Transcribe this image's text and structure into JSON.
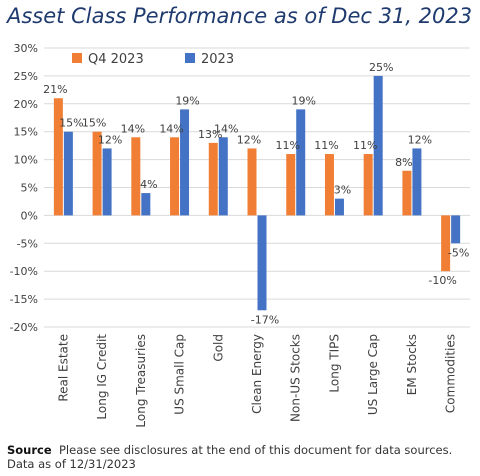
{
  "title": "Asset Class Performance as of Dec 31, 2023",
  "source": {
    "label": "Source",
    "text": "Please see disclosures at the end of this document for data sources.",
    "note": "Data as of 12/31/2023"
  },
  "colors": {
    "q4": "#f07f35",
    "year": "#4472c4",
    "grid": "#d9d9d9",
    "axis_text": "#404040"
  },
  "chart_data": {
    "type": "bar",
    "title": "Asset Class Performance as of Dec 31, 2023",
    "categories": [
      "Real Estate",
      "Long IG Credit",
      "Long Treasuries",
      "US Small Cap",
      "Gold",
      "Clean Energy",
      "Non-US Stocks",
      "Long TIPS",
      "US Large Cap",
      "EM Stocks",
      "Commodities"
    ],
    "series": [
      {
        "name": "Q4 2023",
        "values": [
          21,
          15,
          14,
          14,
          13,
          12,
          11,
          11,
          11,
          8,
          -10
        ],
        "labels": [
          "21%",
          "15%",
          "14%",
          "14%",
          "13%",
          "12%",
          "11%",
          "11%",
          "11%",
          "8%",
          "-10%"
        ]
      },
      {
        "name": "2023",
        "values": [
          15,
          12,
          4,
          19,
          14,
          -17,
          19,
          3,
          25,
          12,
          -5
        ],
        "labels": [
          "15%",
          "12%",
          "4%",
          "19%",
          "14%",
          "-17%",
          "19%",
          "3%",
          "25%",
          "12%",
          "-5%"
        ]
      }
    ],
    "yticks": [
      "30%",
      "25%",
      "20%",
      "15%",
      "10%",
      "5%",
      "0%",
      "-5%",
      "-10%",
      "-15%",
      "-20%"
    ],
    "ylim": [
      -20,
      30
    ],
    "xlabel": "",
    "ylabel": "",
    "legend": "top-left",
    "grid": true
  }
}
